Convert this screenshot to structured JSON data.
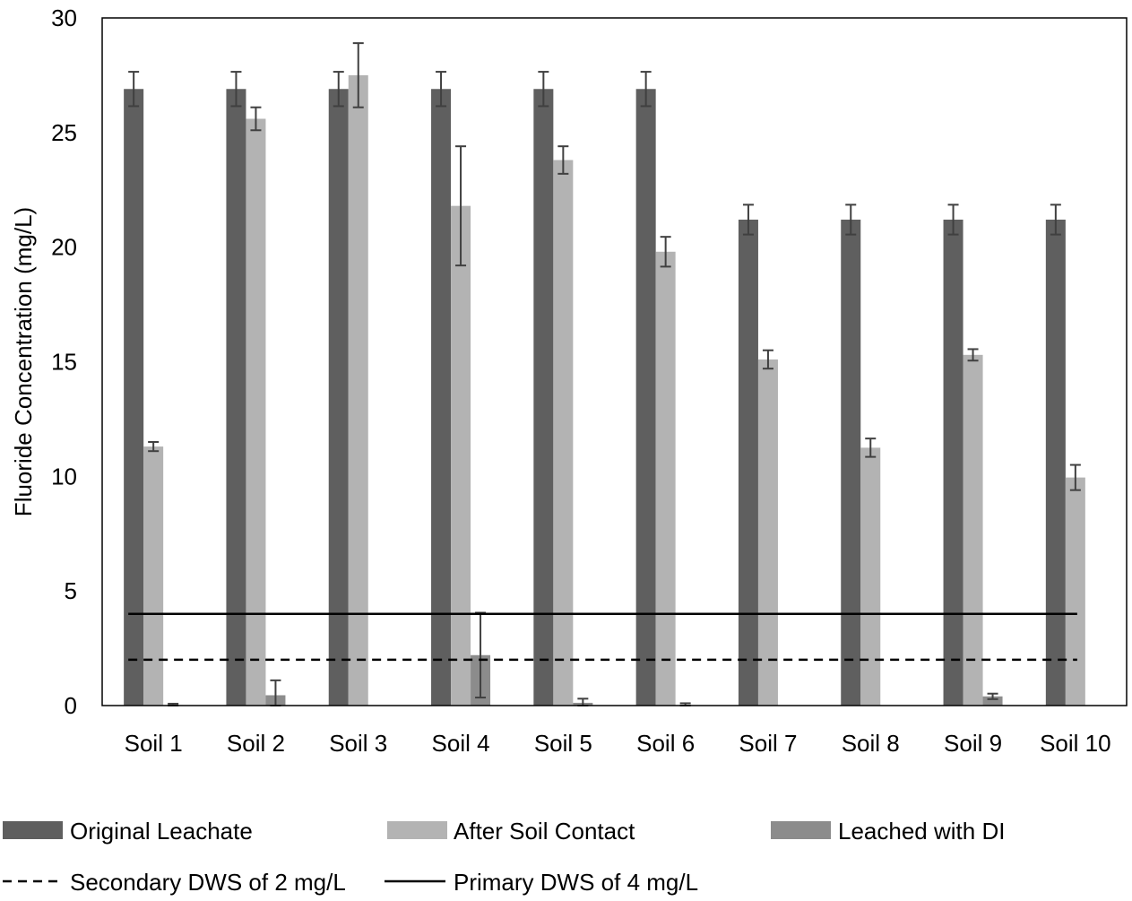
{
  "chart_data": {
    "type": "bar",
    "ylabel": "Fluoride Concentration (mg/L)",
    "ylim": [
      0,
      30
    ],
    "yticks": [
      0,
      5,
      10,
      15,
      20,
      25,
      30
    ],
    "grid": false,
    "legend_position": "bottom",
    "categories": [
      "Soil 1",
      "Soil 2",
      "Soil 3",
      "Soil 4",
      "Soil 5",
      "Soil 6",
      "Soil 7",
      "Soil 8",
      "Soil 9",
      "Soil 10"
    ],
    "series": [
      {
        "name": "Original Leachate",
        "color": "#5f5f5f",
        "values": [
          26.9,
          26.9,
          26.9,
          26.9,
          26.9,
          26.9,
          21.2,
          21.2,
          21.2,
          21.2
        ],
        "errors": [
          0.75,
          0.75,
          0.75,
          0.75,
          0.75,
          0.75,
          0.65,
          0.65,
          0.65,
          0.65
        ]
      },
      {
        "name": "After Soil Contact",
        "color": "#b3b3b3",
        "values": [
          11.3,
          25.6,
          27.5,
          21.8,
          23.8,
          19.8,
          15.1,
          11.25,
          15.3,
          9.95
        ],
        "errors": [
          0.2,
          0.5,
          1.4,
          2.6,
          0.6,
          0.65,
          0.4,
          0.4,
          0.25,
          0.55
        ]
      },
      {
        "name": "Leached with DI",
        "color": "#8c8c8c",
        "values": [
          0.02,
          0.45,
          0,
          2.2,
          0.12,
          0.02,
          0,
          0,
          0.4,
          0
        ],
        "errors": [
          0.06,
          0.65,
          0,
          1.85,
          0.18,
          0.08,
          0,
          0,
          0.12,
          0
        ]
      }
    ],
    "reference_lines": [
      {
        "name": "Secondary DWS of 2 mg/L",
        "value": 2,
        "style": "dashed",
        "color": "#000000"
      },
      {
        "name": "Primary DWS of 4 mg/L",
        "value": 4,
        "style": "solid",
        "color": "#000000"
      }
    ]
  }
}
